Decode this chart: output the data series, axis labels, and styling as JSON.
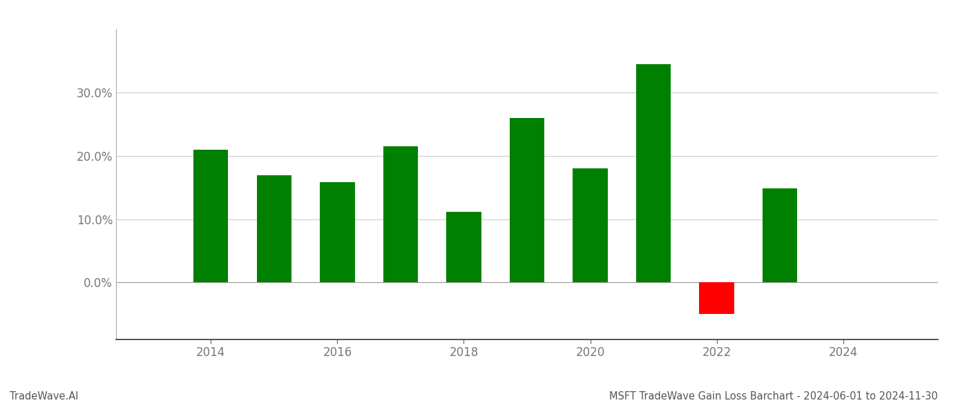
{
  "years": [
    2014,
    2015,
    2016,
    2017,
    2018,
    2019,
    2020,
    2021,
    2022,
    2023
  ],
  "values": [
    0.209,
    0.169,
    0.158,
    0.215,
    0.111,
    0.259,
    0.18,
    0.344,
    -0.05,
    0.148
  ],
  "bar_colors_positive": "#008000",
  "bar_colors_negative": "#ff0000",
  "title": "MSFT TradeWave Gain Loss Barchart - 2024-06-01 to 2024-11-30",
  "watermark": "TradeWave.AI",
  "ylim_min": -0.09,
  "ylim_max": 0.4,
  "yticks": [
    0.0,
    0.1,
    0.2,
    0.3
  ],
  "background_color": "#ffffff",
  "grid_color": "#cccccc",
  "bar_width": 0.55,
  "title_fontsize": 10.5,
  "watermark_fontsize": 10.5,
  "tick_fontsize": 12,
  "xlim_min": 2012.5,
  "xlim_max": 2025.5,
  "xticks": [
    2014,
    2016,
    2018,
    2020,
    2022,
    2024
  ]
}
